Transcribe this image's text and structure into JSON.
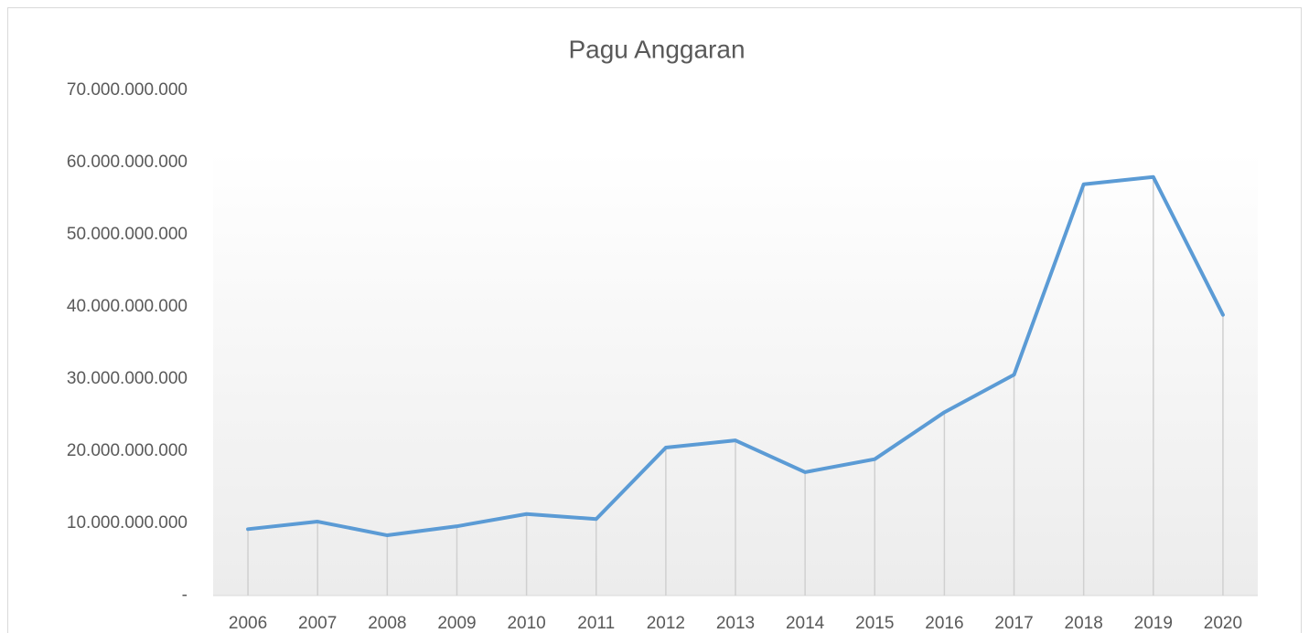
{
  "chart_data": {
    "type": "line",
    "title": "Pagu Anggaran",
    "categories": [
      "2006",
      "2007",
      "2008",
      "2009",
      "2010",
      "2011",
      "2012",
      "2013",
      "2014",
      "2015",
      "2016",
      "2017",
      "2018",
      "2019",
      "2020"
    ],
    "values": [
      9200000000,
      10250000000,
      8350000000,
      9600000000,
      11300000000,
      10600000000,
      20500000000,
      21500000000,
      17100000000,
      18900000000,
      25400000000,
      30600000000,
      57000000000,
      58000000000,
      38900000000
    ],
    "color": "#5b9bd5",
    "ylim": [
      0,
      70000000000
    ],
    "yticks": [
      {
        "value": 0,
        "label": "-"
      },
      {
        "value": 10000000000,
        "label": "10.000.000.000"
      },
      {
        "value": 20000000000,
        "label": "20.000.000.000"
      },
      {
        "value": 30000000000,
        "label": "30.000.000.000"
      },
      {
        "value": 40000000000,
        "label": "40.000.000.000"
      },
      {
        "value": 50000000000,
        "label": "50.000.000.000"
      },
      {
        "value": 60000000000,
        "label": "60.000.000.000"
      },
      {
        "value": 70000000000,
        "label": "70.000.000.000"
      }
    ],
    "grid": false,
    "drop_lines": true
  }
}
